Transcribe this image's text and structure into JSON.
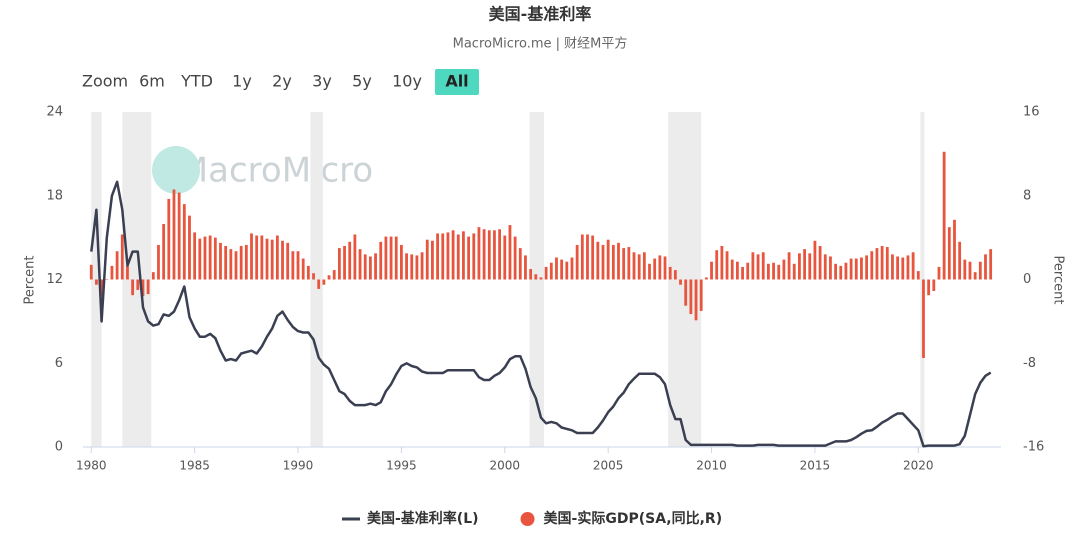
{
  "chart_data": {
    "type": "line_bar_dual",
    "title": "美国-基准利率",
    "subtitle": "MacroMicro.me | 财经M平方",
    "watermark": "MacroMicro",
    "range_selector": {
      "label": "Zoom",
      "buttons": [
        "6m",
        "YTD",
        "1y",
        "2y",
        "3y",
        "5y",
        "10y",
        "All"
      ],
      "selected": 7
    },
    "y_label": "Percent",
    "y2_label": "Percent",
    "xlim": [
      1979.6,
      2024.0
    ],
    "xticks": [
      1980,
      1985,
      1990,
      1995,
      2000,
      2005,
      2010,
      2015,
      2020
    ],
    "ylim": [
      0,
      24
    ],
    "yticks": [
      0,
      6,
      12,
      18,
      24
    ],
    "y2lim": [
      -16,
      16
    ],
    "y2ticks": [
      -16,
      -8,
      0,
      8,
      16
    ],
    "grid": false,
    "recession_shading": [
      [
        1980.0,
        1980.5
      ],
      [
        1981.5,
        1982.9
      ],
      [
        1990.6,
        1991.2
      ],
      [
        2001.2,
        2001.9
      ],
      [
        2007.9,
        2009.5
      ],
      [
        2020.1,
        2020.3
      ]
    ],
    "x": [
      1980,
      1980.25,
      1980.5,
      1980.75,
      1981,
      1981.25,
      1981.5,
      1981.75,
      1982,
      1982.25,
      1982.5,
      1982.75,
      1983,
      1983.25,
      1983.5,
      1983.75,
      1984,
      1984.25,
      1984.5,
      1984.75,
      1985,
      1985.25,
      1985.5,
      1985.75,
      1986,
      1986.25,
      1986.5,
      1986.75,
      1987,
      1987.25,
      1987.5,
      1987.75,
      1988,
      1988.25,
      1988.5,
      1988.75,
      1989,
      1989.25,
      1989.5,
      1989.75,
      1990,
      1990.25,
      1990.5,
      1990.75,
      1991,
      1991.25,
      1991.5,
      1991.75,
      1992,
      1992.25,
      1992.5,
      1992.75,
      1993,
      1993.25,
      1993.5,
      1993.75,
      1994,
      1994.25,
      1994.5,
      1994.75,
      1995,
      1995.25,
      1995.5,
      1995.75,
      1996,
      1996.25,
      1996.5,
      1996.75,
      1997,
      1997.25,
      1997.5,
      1997.75,
      1998,
      1998.25,
      1998.5,
      1998.75,
      1999,
      1999.25,
      1999.5,
      1999.75,
      2000,
      2000.25,
      2000.5,
      2000.75,
      2001,
      2001.25,
      2001.5,
      2001.75,
      2002,
      2002.25,
      2002.5,
      2002.75,
      2003,
      2003.25,
      2003.5,
      2003.75,
      2004,
      2004.25,
      2004.5,
      2004.75,
      2005,
      2005.25,
      2005.5,
      2005.75,
      2006,
      2006.25,
      2006.5,
      2006.75,
      2007,
      2007.25,
      2007.5,
      2007.75,
      2008,
      2008.25,
      2008.5,
      2008.75,
      2009,
      2009.25,
      2009.5,
      2009.75,
      2010,
      2010.25,
      2010.5,
      2010.75,
      2011,
      2011.25,
      2011.5,
      2011.75,
      2012,
      2012.25,
      2012.5,
      2012.75,
      2013,
      2013.25,
      2013.5,
      2013.75,
      2014,
      2014.25,
      2014.5,
      2014.75,
      2015,
      2015.25,
      2015.5,
      2015.75,
      2016,
      2016.25,
      2016.5,
      2016.75,
      2017,
      2017.25,
      2017.5,
      2017.75,
      2018,
      2018.25,
      2018.5,
      2018.75,
      2019,
      2019.25,
      2019.5,
      2019.75,
      2020,
      2020.25,
      2020.5,
      2020.75,
      2021,
      2021.25,
      2021.5,
      2021.75,
      2022,
      2022.25,
      2022.5,
      2022.75,
      2023,
      2023.25,
      2023.5
    ],
    "series": [
      {
        "name": "美国-基准利率(L)",
        "kind": "line",
        "axis": "y",
        "color": "#3a3f51",
        "values": [
          14,
          17,
          9,
          15,
          18,
          19,
          17,
          13,
          14,
          14,
          10,
          9,
          8.7,
          8.8,
          9.5,
          9.4,
          9.7,
          10.5,
          11.5,
          9.3,
          8.5,
          7.9,
          7.9,
          8.1,
          7.8,
          6.9,
          6.2,
          6.3,
          6.2,
          6.7,
          6.8,
          6.9,
          6.7,
          7.2,
          7.9,
          8.5,
          9.4,
          9.7,
          9.1,
          8.6,
          8.3,
          8.2,
          8.2,
          7.7,
          6.4,
          5.9,
          5.6,
          4.8,
          4.0,
          3.8,
          3.3,
          3.0,
          3.0,
          3.0,
          3.1,
          3.0,
          3.2,
          4.0,
          4.5,
          5.2,
          5.8,
          6.0,
          5.8,
          5.7,
          5.4,
          5.3,
          5.3,
          5.3,
          5.3,
          5.5,
          5.5,
          5.5,
          5.5,
          5.5,
          5.5,
          5.0,
          4.8,
          4.8,
          5.1,
          5.3,
          5.7,
          6.3,
          6.5,
          6.5,
          5.6,
          4.3,
          3.5,
          2.1,
          1.7,
          1.8,
          1.7,
          1.4,
          1.3,
          1.2,
          1.0,
          1.0,
          1.0,
          1.0,
          1.4,
          1.9,
          2.5,
          2.9,
          3.5,
          3.9,
          4.5,
          4.9,
          5.25,
          5.25,
          5.25,
          5.25,
          5.0,
          4.5,
          3.0,
          2.0,
          2.0,
          0.5,
          0.15,
          0.15,
          0.15,
          0.15,
          0.15,
          0.15,
          0.15,
          0.15,
          0.15,
          0.1,
          0.1,
          0.1,
          0.1,
          0.15,
          0.15,
          0.15,
          0.15,
          0.1,
          0.1,
          0.1,
          0.1,
          0.1,
          0.1,
          0.1,
          0.1,
          0.1,
          0.1,
          0.25,
          0.4,
          0.4,
          0.4,
          0.5,
          0.7,
          0.95,
          1.15,
          1.2,
          1.45,
          1.75,
          1.95,
          2.2,
          2.4,
          2.4,
          2.0,
          1.6,
          1.2,
          0.05,
          0.1,
          0.1,
          0.1,
          0.1,
          0.1,
          0.1,
          0.2,
          0.8,
          2.3,
          3.8,
          4.6,
          5.1,
          5.33
        ]
      },
      {
        "name": "美国-实际GDP(SA,同比,R)",
        "kind": "bar",
        "axis": "y2",
        "color": "#e8553e",
        "values": [
          1.4,
          -0.5,
          -1.6,
          0,
          1.3,
          2.7,
          4.3,
          1.3,
          -1.5,
          -1.0,
          -1.6,
          -1.4,
          0.7,
          3.3,
          5.3,
          7.7,
          8.6,
          8.3,
          7.2,
          6.1,
          4.5,
          3.9,
          4.1,
          4.2,
          4.0,
          3.5,
          3.2,
          2.9,
          2.7,
          3.2,
          3.3,
          4.4,
          4.2,
          4.2,
          3.9,
          3.8,
          4.2,
          3.7,
          3.5,
          2.7,
          2.7,
          2.0,
          1.3,
          0.6,
          -0.9,
          -0.5,
          0.4,
          0.9,
          3.0,
          3.2,
          3.6,
          4.3,
          2.9,
          2.4,
          2.2,
          2.5,
          3.6,
          4.1,
          4.1,
          4.1,
          3.3,
          2.5,
          2.4,
          2.3,
          2.6,
          3.8,
          3.7,
          4.4,
          4.4,
          4.5,
          4.7,
          4.3,
          4.6,
          4.1,
          4.4,
          5.0,
          4.8,
          4.7,
          4.7,
          4.8,
          4.2,
          5.2,
          4.1,
          3.0,
          2.3,
          1.0,
          0.5,
          0.2,
          1.2,
          1.6,
          2.1,
          1.9,
          1.7,
          2.1,
          3.3,
          4.3,
          4.3,
          4.2,
          3.6,
          3.3,
          3.8,
          3.3,
          3.5,
          3.0,
          3.1,
          2.6,
          2.4,
          2.6,
          1.5,
          2.0,
          2.3,
          2.2,
          1.2,
          0.9,
          -0.5,
          -2.5,
          -3.3,
          -3.9,
          -3.0,
          0.2,
          1.7,
          2.8,
          3.2,
          2.7,
          1.9,
          1.7,
          1.2,
          1.6,
          2.6,
          2.4,
          2.6,
          1.5,
          1.6,
          1.4,
          1.9,
          2.6,
          1.5,
          2.5,
          2.9,
          2.5,
          3.7,
          3.2,
          2.4,
          2.2,
          1.5,
          1.3,
          1.6,
          2.0,
          2.0,
          2.1,
          2.3,
          2.7,
          3.0,
          3.2,
          3.1,
          2.4,
          2.2,
          2.1,
          2.3,
          2.6,
          0.8,
          -7.5,
          -1.5,
          -1.1,
          1.2,
          12.2,
          5.0,
          5.7,
          3.6,
          1.9,
          1.7,
          0.7,
          1.7,
          2.4,
          2.9
        ]
      }
    ]
  }
}
